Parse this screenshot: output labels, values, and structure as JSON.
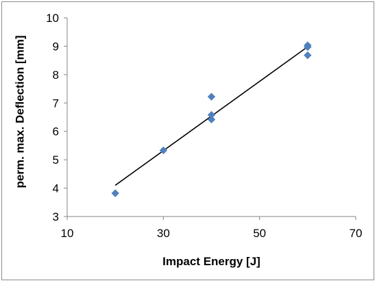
{
  "chart_data": {
    "type": "scatter",
    "title": "",
    "xlabel": "Impact Energy [J]",
    "ylabel": "perm. max. Deflection [mm]",
    "xlim": [
      10,
      70
    ],
    "ylim": [
      3,
      10
    ],
    "xticks": [
      10,
      30,
      50,
      70
    ],
    "yticks": [
      3,
      4,
      5,
      6,
      7,
      8,
      9,
      10
    ],
    "grid": false,
    "legend": "none",
    "marker": "diamond",
    "series": [
      {
        "points": [
          {
            "x": 20,
            "y": 3.82
          },
          {
            "x": 30,
            "y": 5.33
          },
          {
            "x": 40,
            "y": 7.22
          },
          {
            "x": 40,
            "y": 6.58
          },
          {
            "x": 40,
            "y": 6.42
          },
          {
            "x": 60,
            "y": 9.03
          },
          {
            "x": 60,
            "y": 8.97
          },
          {
            "x": 60,
            "y": 8.68
          }
        ],
        "color": "#4f81bd"
      }
    ],
    "trendline": {
      "type": "linear",
      "x": [
        20,
        60
      ],
      "y": [
        4.1,
        8.98
      ],
      "color": "#000000"
    }
  }
}
